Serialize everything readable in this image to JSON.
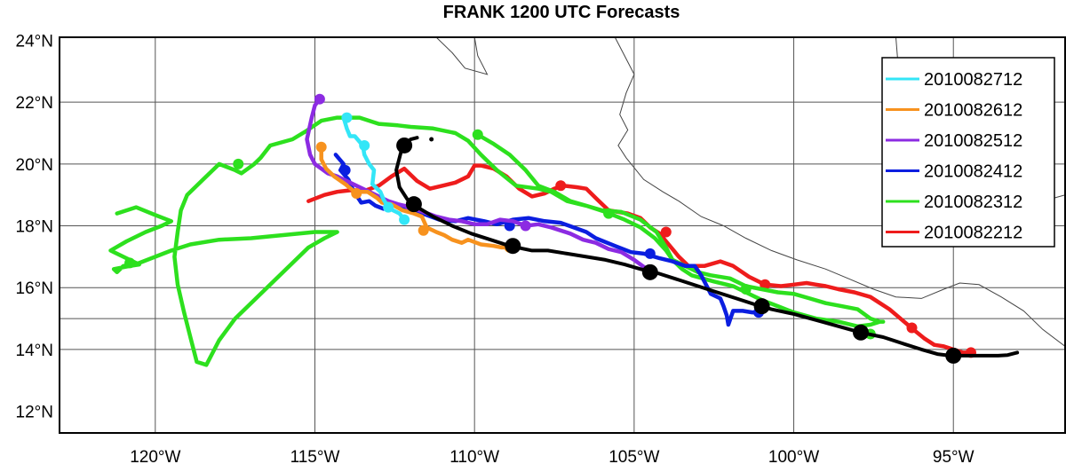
{
  "chart_data": {
    "type": "line",
    "title": "FRANK 1200 UTC Forecasts",
    "xlabel": "",
    "ylabel": "",
    "xlim": [
      -123,
      -91.5
    ],
    "ylim": [
      11.3,
      24.1
    ],
    "grid": true,
    "legend_position": "top-right",
    "x_ticks": [
      {
        "value": -120,
        "label": "120°W"
      },
      {
        "value": -115,
        "label": "115°W"
      },
      {
        "value": -110,
        "label": "110°W"
      },
      {
        "value": -105,
        "label": "105°W"
      },
      {
        "value": -100,
        "label": "100°W"
      },
      {
        "value": -95,
        "label": "95°W"
      }
    ],
    "y_ticks": [
      {
        "value": 24,
        "label": "24°N"
      },
      {
        "value": 22,
        "label": "22°N"
      },
      {
        "value": 20,
        "label": "20°N"
      },
      {
        "value": 18,
        "label": "18°N"
      },
      {
        "value": 16,
        "label": "16°N"
      },
      {
        "value": 14,
        "label": "14°N"
      },
      {
        "value": 12,
        "label": "12°N"
      }
    ],
    "grid_x": [
      -120,
      -115,
      -110,
      -105,
      -100,
      -95
    ],
    "grid_y": [
      22,
      20,
      18,
      16,
      15,
      14
    ],
    "coastline": [
      [
        [
          -105.6,
          24.1
        ],
        [
          -105.3,
          23.5
        ],
        [
          -105.0,
          22.9
        ],
        [
          -105.25,
          22.3
        ],
        [
          -105.45,
          21.6
        ],
        [
          -105.2,
          21.1
        ],
        [
          -105.5,
          20.6
        ],
        [
          -105.25,
          20.2
        ],
        [
          -104.7,
          19.5
        ],
        [
          -104.1,
          19.1
        ],
        [
          -103.6,
          18.8
        ],
        [
          -102.9,
          18.3
        ],
        [
          -102.2,
          18.0
        ],
        [
          -101.5,
          17.6
        ],
        [
          -100.7,
          17.2
        ],
        [
          -99.9,
          16.9
        ],
        [
          -99.0,
          16.6
        ],
        [
          -98.3,
          16.3
        ],
        [
          -97.5,
          15.95
        ],
        [
          -96.8,
          15.7
        ],
        [
          -96.0,
          15.65
        ],
        [
          -95.3,
          15.95
        ],
        [
          -94.8,
          16.15
        ],
        [
          -94.2,
          16.1
        ],
        [
          -93.5,
          15.7
        ],
        [
          -92.8,
          15.25
        ],
        [
          -92.2,
          14.65
        ],
        [
          -91.5,
          14.1
        ]
      ],
      [
        [
          -111.2,
          24.1
        ],
        [
          -110.7,
          23.6
        ],
        [
          -110.3,
          23.1
        ],
        [
          -109.6,
          22.9
        ],
        [
          -109.9,
          23.5
        ],
        [
          -110.0,
          24.1
        ]
      ],
      [
        [
          -96.8,
          24.1
        ],
        [
          -96.7,
          22.8
        ],
        [
          -96.5,
          21.6
        ],
        [
          -96.0,
          20.2
        ],
        [
          -95.1,
          18.7
        ],
        [
          -94.6,
          18.35
        ],
        [
          -93.8,
          18.5
        ],
        [
          -93.0,
          18.65
        ],
        [
          -92.2,
          18.8
        ],
        [
          -91.5,
          19.0
        ]
      ]
    ],
    "series": [
      {
        "name": "2010082712",
        "color": "#33e6f7",
        "x": [
          -114.1,
          -114.0,
          -113.9,
          -113.75,
          -113.5,
          -113.45,
          -113.3,
          -113.15,
          -113.2,
          -112.95,
          -112.85,
          -112.7,
          -112.55,
          -112.35,
          -112.2
        ],
        "y": [
          21.5,
          21.15,
          20.9,
          20.9,
          20.6,
          20.3,
          20.0,
          19.8,
          19.35,
          19.1,
          18.85,
          18.6,
          18.5,
          18.4,
          18.2
        ],
        "markers": [
          {
            "x": -114.0,
            "y": 21.5
          },
          {
            "x": -113.45,
            "y": 20.6
          },
          {
            "x": -112.7,
            "y": 18.6
          },
          {
            "x": -112.2,
            "y": 18.2
          }
        ]
      },
      {
        "name": "2010082612",
        "color": "#f7921e",
        "x": [
          -114.8,
          -114.8,
          -114.65,
          -114.4,
          -114.05,
          -113.75,
          -113.35,
          -113.05,
          -112.9,
          -112.6,
          -112.25,
          -111.9,
          -111.65,
          -111.5,
          -111.2,
          -110.95,
          -110.7,
          -110.4,
          -110.2,
          -109.8,
          -109.4,
          -109.15,
          -108.9
        ],
        "y": [
          20.55,
          20.15,
          19.85,
          19.6,
          19.35,
          19.1,
          19.1,
          18.9,
          18.75,
          18.7,
          18.5,
          18.4,
          18.3,
          17.95,
          17.8,
          17.7,
          17.55,
          17.45,
          17.55,
          17.4,
          17.35,
          17.3,
          17.3
        ],
        "markers": [
          {
            "x": -114.8,
            "y": 20.55
          },
          {
            "x": -113.7,
            "y": 19.05
          },
          {
            "x": -111.6,
            "y": 17.85
          },
          {
            "x": -108.9,
            "y": 17.3
          }
        ]
      },
      {
        "name": "2010082512",
        "color": "#8c2be2",
        "x": [
          -114.85,
          -115.0,
          -115.1,
          -115.25,
          -115.15,
          -115.0,
          -114.8,
          -114.6,
          -114.3,
          -114.0,
          -113.7,
          -113.3,
          -113.0,
          -112.7,
          -112.4,
          -112.0,
          -111.6,
          -111.2,
          -110.8,
          -110.4,
          -110.0,
          -109.6,
          -109.2,
          -108.8,
          -108.4,
          -108.0,
          -107.6,
          -107.0,
          -106.6,
          -106.2,
          -105.8,
          -105.4,
          -105.0,
          -104.6,
          -104.4
        ],
        "y": [
          22.1,
          21.9,
          21.5,
          20.8,
          20.3,
          20.0,
          19.85,
          19.7,
          19.6,
          19.45,
          19.3,
          19.1,
          18.95,
          18.8,
          18.7,
          18.6,
          18.45,
          18.3,
          18.2,
          18.15,
          18.05,
          18.05,
          18.2,
          18.15,
          18.0,
          18.05,
          17.95,
          17.75,
          17.55,
          17.45,
          17.25,
          17.15,
          16.9,
          16.6,
          16.45
        ],
        "markers": [
          {
            "x": -114.85,
            "y": 22.1
          },
          {
            "x": -112.0,
            "y": 18.6
          },
          {
            "x": -108.4,
            "y": 18.0
          },
          {
            "x": -104.5,
            "y": 16.45
          }
        ]
      },
      {
        "name": "2010082412",
        "color": "#0b1ee0",
        "x": [
          -114.35,
          -114.1,
          -114.2,
          -113.95,
          -113.8,
          -113.55,
          -113.3,
          -113.1,
          -112.85,
          -112.55,
          -112.2,
          -111.9,
          -111.5,
          -111.1,
          -110.6,
          -110.2,
          -109.7,
          -109.3,
          -108.8,
          -108.3,
          -107.8,
          -107.3,
          -106.9,
          -106.5,
          -106.2,
          -105.6,
          -105.1,
          -104.7,
          -104.2,
          -103.8,
          -103.4,
          -103.1,
          -102.9,
          -102.7,
          -102.6,
          -102.3,
          -102.2,
          -102.1,
          -102.05,
          -101.9,
          -101.6,
          -101.3,
          -101.05,
          -101.1
        ],
        "y": [
          20.3,
          20.0,
          19.8,
          19.5,
          19.15,
          18.75,
          18.8,
          18.65,
          18.55,
          18.7,
          18.6,
          18.5,
          18.35,
          18.2,
          18.15,
          18.25,
          18.15,
          18.05,
          18.2,
          18.25,
          18.15,
          18.1,
          17.95,
          17.8,
          17.6,
          17.35,
          17.15,
          17.1,
          16.95,
          16.85,
          16.7,
          16.7,
          16.4,
          16.0,
          15.8,
          15.65,
          15.4,
          15.1,
          14.8,
          15.25,
          15.25,
          15.2,
          15.2,
          15.2
        ],
        "markers": [
          {
            "x": -114.05,
            "y": 19.8
          },
          {
            "x": -108.9,
            "y": 18.0
          },
          {
            "x": -104.5,
            "y": 17.1
          },
          {
            "x": -101.1,
            "y": 15.2
          }
        ]
      },
      {
        "name": "2010082312",
        "color": "#2de01e",
        "x": [
          -109.9,
          -109.4,
          -108.9,
          -108.4,
          -108.0,
          -107.5,
          -107.0,
          -106.5,
          -105.9,
          -105.3,
          -104.8,
          -104.35,
          -104.0,
          -103.8,
          -103.4,
          -103.0,
          -102.6,
          -102.0,
          -101.5,
          -101.0,
          -100.5,
          -100.0,
          -99.5,
          -99.0,
          -98.5,
          -98.0,
          -97.6,
          -97.3,
          -97.2,
          -97.2,
          -97.3,
          -97.6,
          -98.0,
          -98.6,
          -99.3,
          -100.0,
          -100.5,
          -101.0,
          -101.5,
          -101.9,
          -102.5,
          -103.2,
          -103.5,
          -103.8,
          -104.0,
          -104.3,
          -104.8,
          -105.4,
          -106.0,
          -106.5,
          -107.1,
          -107.6,
          -108.0,
          -108.7,
          -109.3,
          -109.8,
          -110.2,
          -110.6,
          -111.3,
          -112.0,
          -112.4,
          -113.0,
          -113.6,
          -114.3,
          -114.8,
          -115.3,
          -115.7,
          -116.4,
          -116.7,
          -116.9,
          -117.3,
          -117.5,
          -118.0,
          -118.5,
          -119.0,
          -119.2,
          -119.3,
          -119.4,
          -119.3,
          -119.1,
          -118.9,
          -118.7,
          -118.4,
          -118.0,
          -117.5,
          -116.9,
          -116.3,
          -115.7,
          -115.2,
          -114.7,
          -114.3,
          -115.0,
          -116.0,
          -117.0,
          -118.0,
          -118.9,
          -119.5,
          -120.0,
          -120.5,
          -121.0,
          -121.1,
          -121.2,
          -121.3,
          -120.8,
          -120.5,
          -121.4,
          -120.9,
          -120.3,
          -119.8,
          -119.5,
          -120.0,
          -120.6,
          -121.2
        ],
        "y": [
          20.95,
          20.65,
          20.3,
          19.8,
          19.3,
          19.1,
          18.8,
          18.65,
          18.45,
          18.2,
          17.95,
          17.6,
          17.2,
          16.9,
          16.7,
          16.5,
          16.4,
          16.3,
          16.05,
          15.95,
          15.85,
          15.8,
          15.65,
          15.5,
          15.4,
          15.3,
          15.0,
          14.9,
          14.9,
          14.9,
          14.9,
          14.8,
          14.75,
          14.9,
          15.0,
          15.2,
          15.4,
          15.6,
          15.85,
          16.05,
          16.2,
          16.4,
          16.6,
          16.9,
          17.3,
          17.8,
          18.2,
          18.45,
          18.5,
          18.65,
          18.8,
          19.1,
          19.2,
          19.3,
          19.8,
          20.3,
          20.75,
          21.0,
          21.15,
          21.2,
          21.25,
          21.3,
          21.5,
          21.5,
          21.4,
          21.05,
          20.8,
          20.6,
          20.2,
          20.0,
          19.7,
          19.8,
          20.0,
          19.5,
          19.0,
          18.5,
          17.8,
          17.0,
          16.1,
          15.2,
          14.4,
          13.6,
          13.5,
          14.3,
          15.0,
          15.6,
          16.2,
          16.8,
          17.3,
          17.6,
          17.8,
          17.8,
          17.7,
          17.6,
          17.55,
          17.4,
          17.2,
          17.0,
          16.8,
          16.7,
          16.6,
          16.5,
          16.6,
          16.7,
          16.75,
          17.2,
          17.5,
          17.8,
          18.0,
          18.15,
          18.35,
          18.6,
          18.4
        ],
        "markers": [
          {
            "x": -97.6,
            "y": 14.5
          },
          {
            "x": -101.5,
            "y": 15.95
          },
          {
            "x": -105.8,
            "y": 18.4
          },
          {
            "x": -109.9,
            "y": 20.95
          },
          {
            "x": -117.4,
            "y": 20.0
          },
          {
            "x": -120.8,
            "y": 16.8
          }
        ]
      },
      {
        "name": "2010082212",
        "color": "#ee1c1c",
        "x": [
          -94.45,
          -94.7,
          -95.0,
          -95.3,
          -95.6,
          -95.9,
          -96.2,
          -96.6,
          -97.0,
          -97.3,
          -97.6,
          -98.1,
          -98.6,
          -99.0,
          -99.3,
          -99.6,
          -100.0,
          -100.4,
          -100.9,
          -101.4,
          -101.9,
          -102.3,
          -102.8,
          -103.3,
          -103.6,
          -104.0,
          -104.2,
          -104.5,
          -104.8,
          -105.2,
          -105.8,
          -106.2,
          -106.5,
          -106.8,
          -107.2,
          -107.5,
          -107.8,
          -108.2,
          -108.6,
          -109.0,
          -109.4,
          -109.8,
          -110.0,
          -110.2,
          -110.6,
          -111.0,
          -111.4,
          -111.8,
          -112.2,
          -112.6,
          -113.0,
          -113.4,
          -113.9,
          -114.3,
          -114.7,
          -115.2
        ],
        "y": [
          13.9,
          13.9,
          14.0,
          14.1,
          14.15,
          14.35,
          14.6,
          14.95,
          15.3,
          15.5,
          15.7,
          15.85,
          15.95,
          16.05,
          16.1,
          16.15,
          16.1,
          16.05,
          16.1,
          16.35,
          16.7,
          16.85,
          16.7,
          16.7,
          17.0,
          17.5,
          17.75,
          17.95,
          18.25,
          18.4,
          18.5,
          18.9,
          19.2,
          19.25,
          19.3,
          19.2,
          19.05,
          18.95,
          19.2,
          19.6,
          19.85,
          19.95,
          19.95,
          19.6,
          19.4,
          19.3,
          19.2,
          19.45,
          19.85,
          19.6,
          19.3,
          19.15,
          19.15,
          19.1,
          19.0,
          18.8
        ],
        "markers": [
          {
            "x": -94.45,
            "y": 13.9
          },
          {
            "x": -96.3,
            "y": 14.7
          },
          {
            "x": -100.9,
            "y": 16.1
          },
          {
            "x": -104.0,
            "y": 17.8
          },
          {
            "x": -107.3,
            "y": 19.3
          }
        ]
      },
      {
        "name": "",
        "color": "#000000",
        "x": [
          -93.0,
          -93.3,
          -93.6,
          -94.0,
          -94.4,
          -94.8,
          -95.1,
          -95.5,
          -96.0,
          -96.6,
          -97.2,
          -97.9,
          -98.6,
          -99.3,
          -100.0,
          -100.7,
          -101.2,
          -101.8,
          -102.4,
          -103.0,
          -103.6,
          -104.2,
          -104.8,
          -105.3,
          -105.9,
          -106.5,
          -107.1,
          -107.7,
          -108.2,
          -108.9,
          -109.5,
          -110.1,
          -110.7,
          -111.3,
          -111.7,
          -112.1,
          -112.35,
          -112.45,
          -112.3,
          -112.2
        ],
        "y": [
          13.9,
          13.82,
          13.8,
          13.8,
          13.8,
          13.8,
          13.8,
          13.85,
          14.0,
          14.2,
          14.4,
          14.55,
          14.75,
          14.95,
          15.15,
          15.3,
          15.45,
          15.65,
          15.85,
          16.05,
          16.25,
          16.45,
          16.6,
          16.75,
          16.9,
          17.0,
          17.1,
          17.2,
          17.2,
          17.35,
          17.55,
          17.75,
          18.0,
          18.3,
          18.55,
          18.85,
          19.25,
          19.8,
          20.4,
          20.6
        ],
        "markers": [
          {
            "x": -95.0,
            "y": 13.8
          },
          {
            "x": -97.9,
            "y": 14.55
          },
          {
            "x": -101.0,
            "y": 15.4
          },
          {
            "x": -104.5,
            "y": 16.5
          },
          {
            "x": -108.8,
            "y": 17.35
          },
          {
            "x": -111.9,
            "y": 18.7
          },
          {
            "x": -112.2,
            "y": 20.6
          }
        ],
        "tail": [
          [
            -112.2,
            20.6
          ],
          [
            -112.0,
            20.8
          ],
          [
            -111.8,
            20.85
          ]
        ],
        "tail_dot": {
          "x": -111.35,
          "y": 20.8
        }
      }
    ],
    "legend": [
      {
        "label": "2010082712",
        "color": "#33e6f7"
      },
      {
        "label": "2010082612",
        "color": "#f7921e"
      },
      {
        "label": "2010082512",
        "color": "#8c2be2"
      },
      {
        "label": "2010082412",
        "color": "#0b1ee0"
      },
      {
        "label": "2010082312",
        "color": "#2de01e"
      },
      {
        "label": "2010082212",
        "color": "#ee1c1c"
      }
    ]
  }
}
